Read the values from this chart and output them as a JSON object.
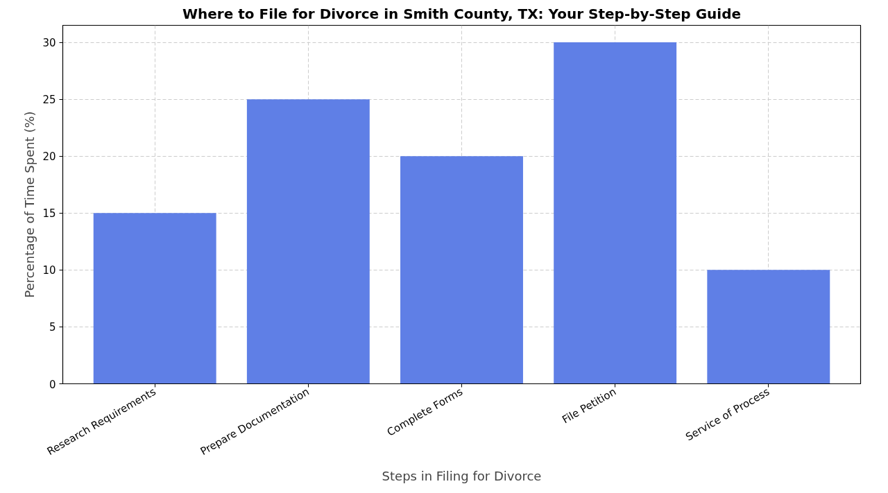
{
  "chart_data": {
    "type": "bar",
    "title": "Where to File for Divorce in Smith County, TX: Your Step-by-Step Guide",
    "xlabel": "Steps in Filing for Divorce",
    "ylabel": "Percentage of Time Spent (%)",
    "categories": [
      "Research Requirements",
      "Prepare Documentation",
      "Complete Forms",
      "File Petition",
      "Service of Process"
    ],
    "values": [
      15,
      25,
      20,
      30,
      10
    ],
    "color": "#5f7fe6",
    "ylim": [
      0,
      31.5
    ],
    "yticks": [
      0,
      5,
      10,
      15,
      20,
      25,
      30
    ],
    "grid": true
  }
}
